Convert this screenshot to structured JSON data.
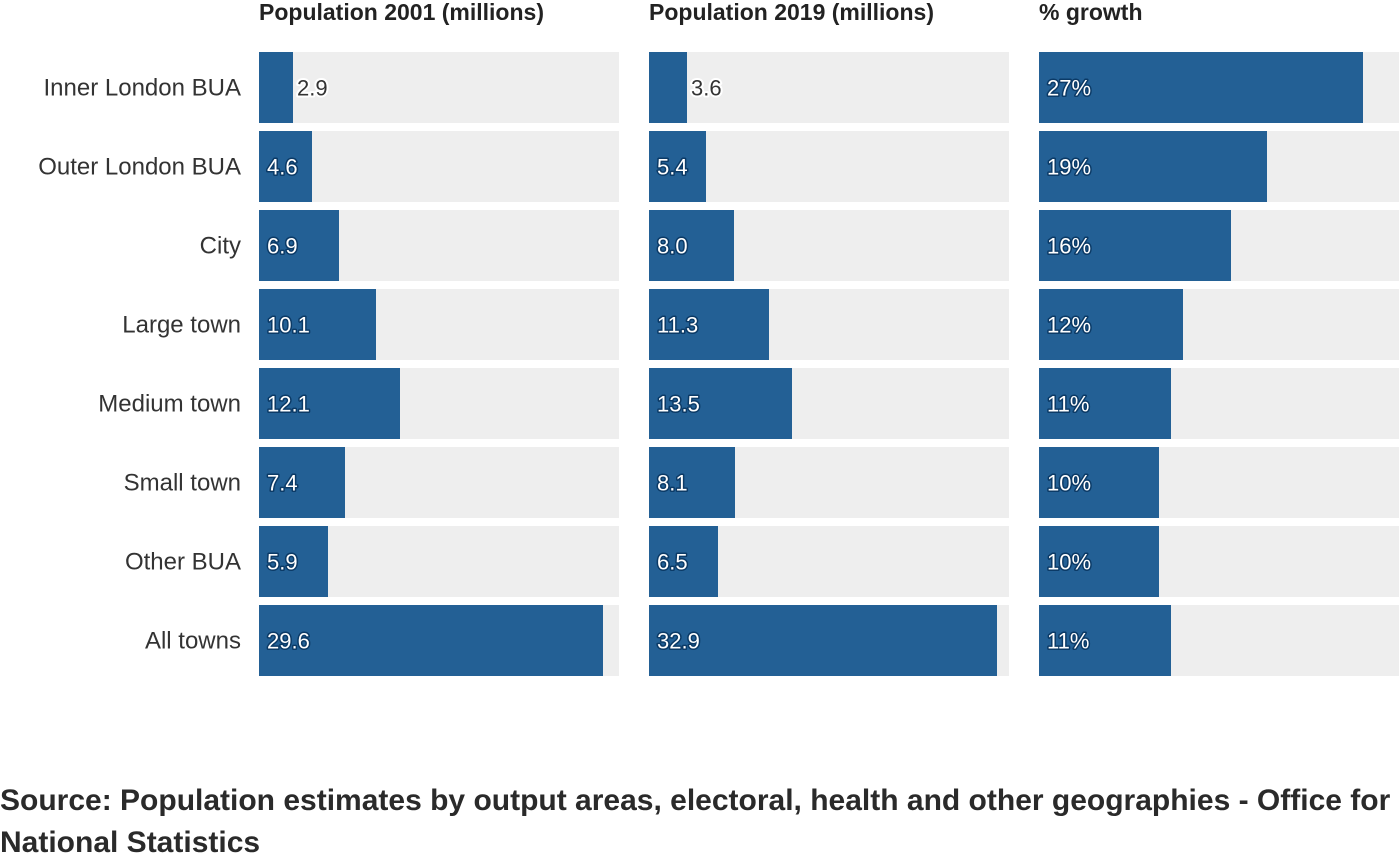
{
  "chart_data": {
    "type": "bar",
    "orientation": "horizontal",
    "categories": [
      "Inner London BUA",
      "Outer London BUA",
      "City",
      "Large town",
      "Medium town",
      "Small town",
      "Other BUA",
      "All towns"
    ],
    "panels": [
      {
        "title": "Population 2001 (millions)",
        "values": [
          2.9,
          4.6,
          6.9,
          10.1,
          12.1,
          7.4,
          5.9,
          29.6
        ],
        "labels": [
          "2.9",
          "4.6",
          "6.9",
          "10.1",
          "12.1",
          "7.4",
          "5.9",
          "29.6"
        ],
        "xlim": [
          0,
          31
        ]
      },
      {
        "title": "Population 2019 (millions)",
        "values": [
          3.6,
          5.4,
          8.0,
          11.3,
          13.5,
          8.1,
          6.5,
          32.9
        ],
        "labels": [
          "3.6",
          "5.4",
          "8.0",
          "11.3",
          "13.5",
          "8.1",
          "6.5",
          "32.9"
        ],
        "xlim": [
          0,
          34
        ]
      },
      {
        "title": "% growth",
        "values": [
          27,
          19,
          16,
          12,
          11,
          10,
          10,
          11
        ],
        "labels": [
          "27%",
          "19%",
          "16%",
          "12%",
          "11%",
          "10%",
          "10%",
          "11%"
        ],
        "xlim": [
          0,
          30
        ]
      }
    ],
    "colors": {
      "bar": "#236095",
      "track": "#eeeeee"
    },
    "grid": false,
    "legend": "none"
  },
  "source": "Source: Population estimates by output areas, electoral, health and other geographies - Office for National Statistics"
}
